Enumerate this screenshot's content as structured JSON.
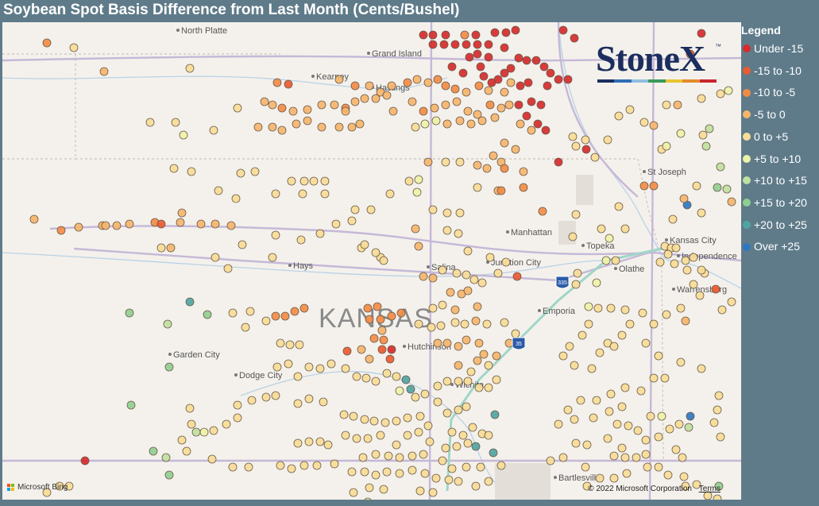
{
  "title": "Soybean Spot Basis Difference from Last Month (Cents/Bushel)",
  "legend": {
    "title": "Legend",
    "items": [
      {
        "label": "Under -15",
        "color": "#d52b2b"
      },
      {
        "label": "-15 to -10",
        "color": "#ea5a30"
      },
      {
        "label": "-10 to -5",
        "color": "#f28c45"
      },
      {
        "label": "-5 to 0",
        "color": "#f5b56c"
      },
      {
        "label": "0 to +5",
        "color": "#f7dc96"
      },
      {
        "label": "+5 to +10",
        "color": "#eef2a6"
      },
      {
        "label": "+10 to +15",
        "color": "#bfe0a0"
      },
      {
        "label": "+15 to +20",
        "color": "#8fcf8f"
      },
      {
        "label": "+20 to +25",
        "color": "#4fa5a3"
      },
      {
        "label": "Over +25",
        "color": "#2f78c0"
      }
    ]
  },
  "logo": {
    "text": "StoneX",
    "tm": "™",
    "bar_colors": [
      "#1c2e5e",
      "#2f6db5",
      "#8fbde0",
      "#3a9a5a",
      "#e8c533",
      "#e58a2c",
      "#c8262d"
    ]
  },
  "map": {
    "region_label": "KANSAS",
    "cities": [
      "North Platte",
      "Grand Island",
      "Kearney",
      "Hastings",
      "St Joseph",
      "Manhattan",
      "Kansas City",
      "Topeka",
      "Independence",
      "Hays",
      "Salina",
      "Junction City",
      "Olathe",
      "Warrensburg",
      "Emporia",
      "Garden City",
      "Hutchinson",
      "Dodge City",
      "Wichita",
      "Bartlesville"
    ],
    "highway_shields": [
      "335",
      "35"
    ]
  },
  "footer": {
    "bing": "Microsoft Bing",
    "copyright": "© 2022 Microsoft Corporation",
    "terms": "Terms"
  }
}
